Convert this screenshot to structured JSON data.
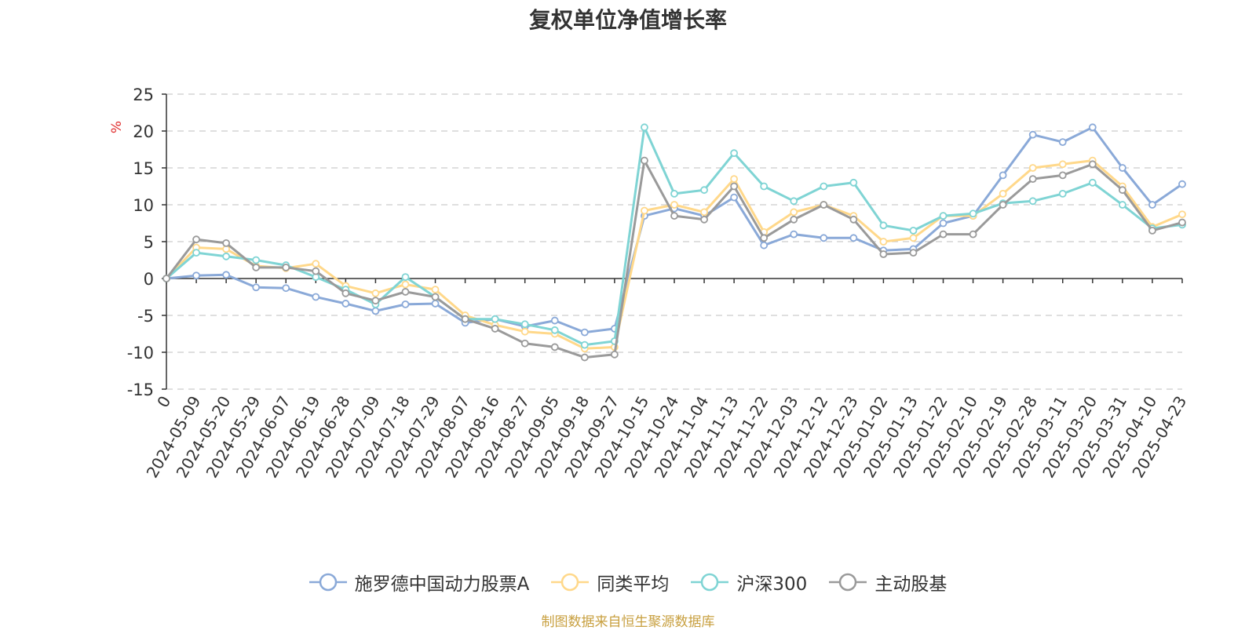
{
  "title": "复权单位净值增长率",
  "source": "制图数据来自恒生聚源数据库",
  "colors": {
    "fund": "#8aa9d8",
    "peer": "#ffd88a",
    "index": "#7fd4d4",
    "active": "#9a9a9a",
    "unit": "#e03030"
  },
  "chart_data": {
    "type": "line",
    "title": "复权单位净值增长率",
    "ylabel": "%",
    "ylim": [
      -15,
      25
    ],
    "yticks": [
      -15,
      -10,
      -5,
      0,
      5,
      10,
      15,
      20,
      25
    ],
    "grid": true,
    "legend_position": "bottom",
    "x_tick_labels": [
      "0",
      "2024-05-09",
      "2024-05-20",
      "2024-05-29",
      "2024-06-07",
      "2024-06-19",
      "2024-06-28",
      "2024-07-09",
      "2024-07-18",
      "2024-07-29",
      "2024-08-07",
      "2024-08-16",
      "2024-08-27",
      "2024-09-05",
      "2024-09-18",
      "2024-09-27",
      "2024-10-15",
      "2024-10-24",
      "2024-11-04",
      "2024-11-13",
      "2024-11-22",
      "2024-12-03",
      "2024-12-12",
      "2024-12-23",
      "2025-01-02",
      "2025-01-13",
      "2025-01-22",
      "2025-02-10",
      "2025-02-19",
      "2025-02-28",
      "2025-03-11",
      "2025-03-20",
      "2025-03-31",
      "2025-04-10",
      "2025-04-23"
    ],
    "series": [
      {
        "name": "施罗德中国动力股票A",
        "color_key": "fund",
        "values": [
          0,
          0.4,
          0.5,
          -1.2,
          -1.3,
          -2.5,
          -3.4,
          -4.4,
          -3.5,
          -3.4,
          -6.0,
          -5.5,
          -6.5,
          -5.7,
          -7.3,
          -6.8,
          8.5,
          9.5,
          8.5,
          11.0,
          4.5,
          6.0,
          5.5,
          5.5,
          3.8,
          4.0,
          7.5,
          8.5,
          14.0,
          19.5,
          18.5,
          20.5,
          15.0,
          10.0,
          12.8
        ]
      },
      {
        "name": "同类平均",
        "color_key": "peer",
        "values": [
          0,
          4.2,
          4.0,
          1.7,
          1.4,
          2.0,
          -1.0,
          -2.0,
          -0.8,
          -1.5,
          -5.0,
          -6.3,
          -7.2,
          -7.5,
          -9.5,
          -9.3,
          9.2,
          10.0,
          9.0,
          13.5,
          6.3,
          9.0,
          10.0,
          8.5,
          5.0,
          5.5,
          8.5,
          8.5,
          11.5,
          15.0,
          15.5,
          16.0,
          12.5,
          7.0,
          8.7
        ]
      },
      {
        "name": "沪深300",
        "color_key": "index",
        "values": [
          0,
          3.5,
          3.0,
          2.5,
          1.8,
          0.2,
          -1.5,
          -3.5,
          0.2,
          -2.5,
          -5.5,
          -5.5,
          -6.2,
          -7.0,
          -9.0,
          -8.5,
          20.5,
          11.5,
          12.0,
          17.0,
          12.5,
          10.5,
          12.5,
          13.0,
          7.2,
          6.5,
          8.5,
          8.8,
          10.2,
          10.5,
          11.5,
          13.0,
          10.0,
          6.8,
          7.3
        ]
      },
      {
        "name": "主动股基",
        "color_key": "active",
        "values": [
          0,
          5.3,
          4.8,
          1.5,
          1.5,
          1.0,
          -2.0,
          -3.0,
          -1.8,
          -2.5,
          -5.5,
          -6.8,
          -8.8,
          -9.3,
          -10.7,
          -10.3,
          16.0,
          8.5,
          8.0,
          12.5,
          5.5,
          8.0,
          10.0,
          8.0,
          3.3,
          3.5,
          6.0,
          6.0,
          10.0,
          13.5,
          14.0,
          15.5,
          12.0,
          6.5,
          7.6
        ]
      }
    ]
  }
}
